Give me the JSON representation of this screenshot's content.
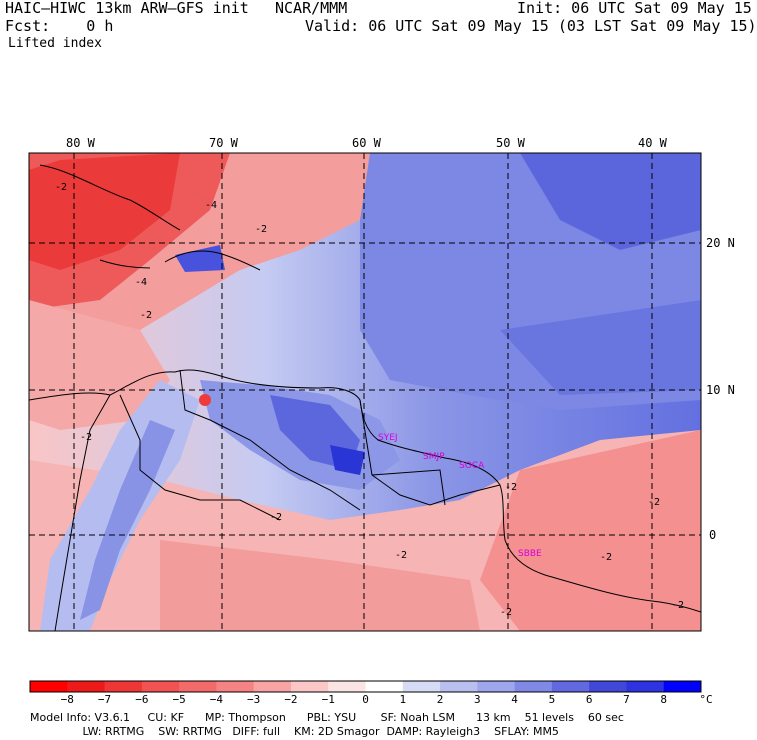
{
  "header": {
    "model": "HAIC–HIWC 13km ARW–GFS init",
    "org": "NCAR/MMM",
    "init": "Init: 06 UTC Sat 09 May 15",
    "fcst": "Fcst:    0 h",
    "valid": "Valid: 06 UTC Sat 09 May 15 (03 LST Sat 09 May 15)",
    "field": "Lifted index"
  },
  "map": {
    "lon_labels": [
      "80 W",
      "70 W",
      "60 W",
      "50 W",
      "40 W"
    ],
    "lat_labels": [
      "20 N",
      "10 N",
      "0"
    ],
    "stations": [
      "SYEJ",
      "SMJP",
      "SOCA",
      "SBBE"
    ],
    "contour_labels": [
      "-2",
      "-4",
      "-2",
      "-2",
      "-4",
      "-2",
      "-2",
      "-2",
      "-2",
      "-2",
      "-2",
      "-2",
      "-2"
    ],
    "colors": {
      "ocean_blue": "#7f8fe8",
      "deep_blue": "#2a3ad8",
      "red": "#ee3a3a",
      "pink": "#f39a9a",
      "station": "#d800d8"
    }
  },
  "colorbar": {
    "labels": [
      "−8",
      "−7",
      "−6",
      "−5",
      "−4",
      "−3",
      "−2",
      "−1",
      "0",
      "1",
      "2",
      "3",
      "4",
      "5",
      "6",
      "7",
      "8"
    ],
    "unit": "°C",
    "colors": [
      "#ff0000",
      "#ee1a1a",
      "#ef3636",
      "#f15252",
      "#f36a6a",
      "#f58383",
      "#f8a4a4",
      "#fbc7c7",
      "#fbe4e4",
      "#ffffff",
      "#d6dcf6",
      "#b9c0f0",
      "#9ea6ec",
      "#8089e6",
      "#6268e0",
      "#4148d8",
      "#2d33e0",
      "#0000ff"
    ]
  },
  "footer": {
    "line1": "Model Info: V3.6.1     CU: KF      MP: Thompson      PBL: YSU       SF: Noah LSM      13 km    51 levels    60 sec",
    "line2": "               LW: RRTMG    SW: RRTMG   DIFF: full    KM: 2D Smagor  DAMP: Rayleigh3    SFLAY: MM5"
  }
}
